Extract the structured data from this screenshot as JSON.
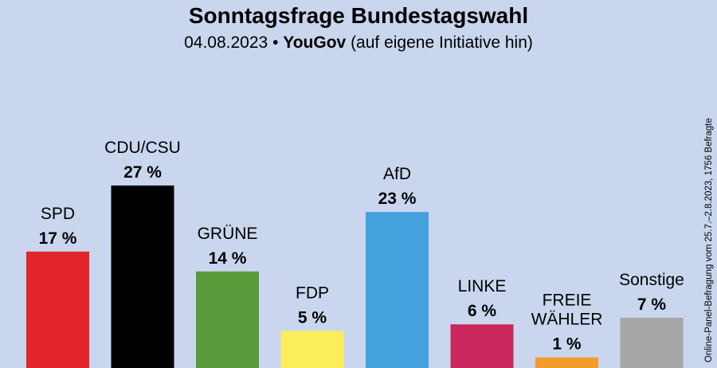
{
  "chart_data": {
    "type": "bar",
    "title": "Sonntagsfrage Bundestagswahl",
    "subtitle": {
      "date": "04.08.2023",
      "separator": "•",
      "institute": "YouGov",
      "note": "(auf eigene Initiative hin)"
    },
    "side_note": "Online-Panel-Befragung vom 25.7.–2.8.2023, 1756 Befragte",
    "categories": [
      [
        "SPD"
      ],
      [
        "CDU/CSU"
      ],
      [
        "GRÜNE"
      ],
      [
        "FDP"
      ],
      [
        "LINKE"
      ],
      [
        "AfD"
      ],
      [
        "FREIE",
        "WÄHLER"
      ],
      [
        "Sonstige"
      ]
    ],
    "order_displayed": [
      "SPD",
      "CDU/CSU",
      "GRÜNE",
      "FDP",
      "AfD",
      "LINKE",
      "FREIE WÄHLER",
      "Sonstige"
    ],
    "bars": [
      {
        "label": [
          "SPD"
        ],
        "value": 17,
        "value_label": "17 %",
        "color": "#e3262b"
      },
      {
        "label": [
          "CDU/CSU"
        ],
        "value": 27,
        "value_label": "27 %",
        "color": "#000000"
      },
      {
        "label": [
          "GRÜNE"
        ],
        "value": 14,
        "value_label": "14 %",
        "color": "#5a9a3a"
      },
      {
        "label": [
          "FDP"
        ],
        "value": 5,
        "value_label": "5 %",
        "color": "#fbee5a"
      },
      {
        "label": [
          "AfD"
        ],
        "value": 23,
        "value_label": "23 %",
        "color": "#45a1de"
      },
      {
        "label": [
          "LINKE"
        ],
        "value": 6,
        "value_label": "6 %",
        "color": "#c8285c"
      },
      {
        "label": [
          "FREIE",
          "WÄHLER"
        ],
        "value": 1,
        "value_label": "1 %",
        "color": "#f39b2a"
      },
      {
        "label": [
          "Sonstige"
        ],
        "value": 7,
        "value_label": "7 %",
        "color": "#a7a7a7"
      }
    ],
    "unit": "%",
    "ylim": [
      0,
      30
    ],
    "grid": false,
    "legend": "none"
  }
}
